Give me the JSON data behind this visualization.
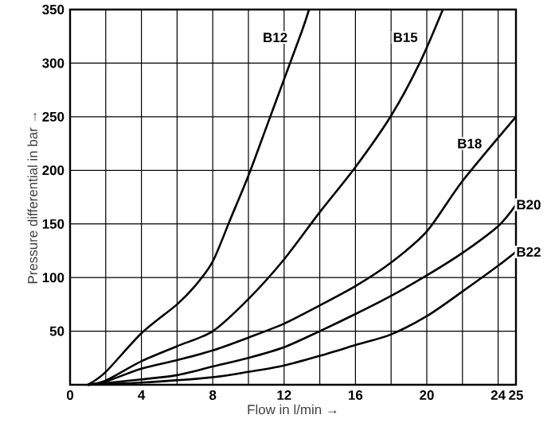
{
  "chart_data": {
    "type": "line",
    "xlabel": "Flow in l/min →",
    "ylabel": "Pressure differential in bar →",
    "xlim": [
      0,
      25
    ],
    "ylim": [
      0,
      350
    ],
    "xticks": [
      0,
      {
        "value": 2,
        "label": null
      },
      4,
      {
        "value": 6,
        "label": null
      },
      8,
      {
        "value": 10,
        "label": null
      },
      12,
      {
        "value": 14,
        "label": null
      },
      16,
      {
        "value": 18,
        "label": null
      },
      20,
      {
        "value": 22,
        "label": null
      },
      24,
      25
    ],
    "yticks": [
      {
        "value": 0,
        "label": null
      },
      50,
      100,
      150,
      200,
      250,
      300,
      350
    ],
    "grid": true,
    "series": [
      {
        "color": "#000000",
        "x": [
          1,
          2,
          4,
          6,
          7,
          8,
          9,
          10,
          11,
          12,
          13,
          13.4
        ],
        "values": [
          0,
          12,
          48,
          75,
          92,
          115,
          155,
          195,
          240,
          285,
          330,
          350
        ]
      },
      {
        "color": "#000000",
        "x": [
          1,
          2,
          4,
          6,
          8,
          10,
          12,
          14,
          16,
          18,
          19.6,
          20.9
        ],
        "values": [
          0,
          4,
          22,
          36,
          50,
          80,
          117,
          161,
          203,
          251,
          300,
          350
        ]
      },
      {
        "color": "#000000",
        "x": [
          1,
          2,
          4,
          6,
          8,
          10,
          12,
          14,
          16,
          18,
          20,
          22,
          25
        ],
        "values": [
          0,
          3,
          15,
          23,
          32,
          44,
          57,
          74,
          92,
          114,
          143,
          190,
          250
        ]
      },
      {
        "color": "#000000",
        "x": [
          1,
          4,
          6,
          8,
          10,
          12,
          14,
          16,
          18,
          20,
          22,
          24,
          25
        ],
        "values": [
          0,
          5,
          9,
          17,
          25,
          35,
          50,
          66,
          83,
          102,
          123,
          148,
          168
        ]
      },
      {
        "color": "#000000",
        "x": [
          1,
          4,
          8,
          10,
          12,
          14,
          16,
          18,
          20,
          22,
          24,
          25
        ],
        "values": [
          0,
          2,
          7,
          12,
          18,
          27,
          37,
          47,
          64,
          87,
          111,
          124
        ]
      }
    ],
    "annotations": [
      {
        "text": "B12",
        "x": 11.5,
        "y": 324
      },
      {
        "text": "B15",
        "x": 18.8,
        "y": 324
      },
      {
        "text": "B18",
        "x": 22.4,
        "y": 225
      },
      {
        "text": "B20",
        "x": 25,
        "y": 168
      },
      {
        "text": "B22",
        "x": 25,
        "y": 124
      }
    ]
  }
}
